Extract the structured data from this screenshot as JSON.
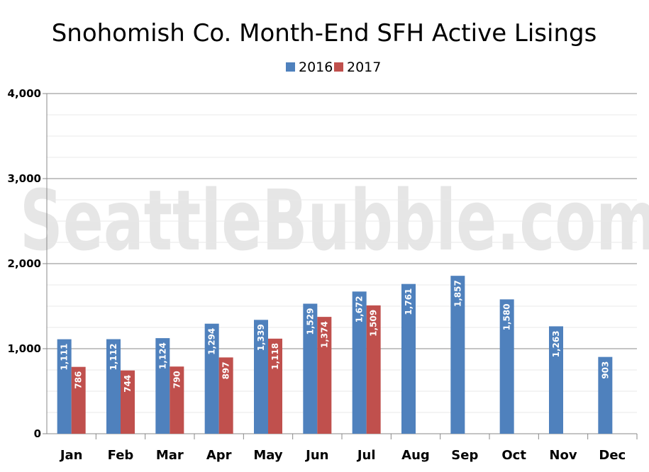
{
  "chart_data": {
    "type": "bar",
    "title": "Snohomish Co. Month-End SFH Active Lisings",
    "watermark": "SeattleBubble.com",
    "categories": [
      "Jan",
      "Feb",
      "Mar",
      "Apr",
      "May",
      "Jun",
      "Jul",
      "Aug",
      "Sep",
      "Oct",
      "Nov",
      "Dec"
    ],
    "series": [
      {
        "name": "2016",
        "color": "#4f81bd",
        "values": [
          1111,
          1112,
          1124,
          1294,
          1339,
          1529,
          1672,
          1761,
          1857,
          1580,
          1263,
          903
        ],
        "labels": [
          "1,111",
          "1,112",
          "1,124",
          "1,294",
          "1,339",
          "1,529",
          "1,672",
          "1,761",
          "1,857",
          "1,580",
          "1,263",
          "903"
        ]
      },
      {
        "name": "2017",
        "color": "#c0504d",
        "values": [
          786,
          744,
          790,
          897,
          1118,
          1374,
          1509,
          null,
          null,
          null,
          null,
          null
        ],
        "labels": [
          "786",
          "744",
          "790",
          "897",
          "1,118",
          "1,374",
          "1,509",
          "",
          "",
          "",
          "",
          ""
        ]
      }
    ],
    "ylim": [
      0,
      4000
    ],
    "yticks": [
      0,
      1000,
      2000,
      3000,
      4000
    ],
    "ytick_labels": [
      "0",
      "1,000",
      "2,000",
      "3,000",
      "4,000"
    ],
    "grid": true,
    "legend": "top-center",
    "xlabel": "",
    "ylabel": ""
  }
}
